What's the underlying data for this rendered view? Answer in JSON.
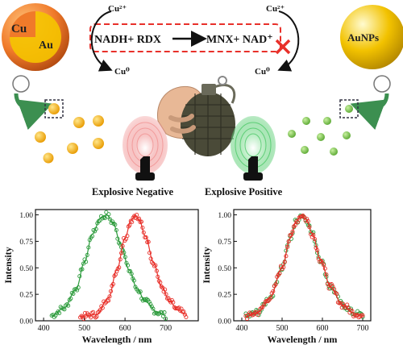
{
  "scheme": {
    "cu_label": "Cu",
    "au_label": "Au",
    "aunps_label": "AuNPs",
    "cu2_left": "Cu²⁺",
    "cu2_right": "Cu²⁺",
    "cu0_left": "Cu⁰",
    "cu0_right": "Cu⁰",
    "reaction_left": "NADH+ RDX",
    "reaction_right": "MNX+ NAD⁺",
    "negative_label": "Explosive Negative",
    "positive_label": "Explosive Positive",
    "colors": {
      "cu_shell": "#f07a2a",
      "au_core": "#f5c400",
      "aunps": "#f2c200",
      "dashed_box": "#e8302a",
      "block_x": "#e8302a",
      "dot_yellow": "#f2a900",
      "dot_green": "#7cc44a",
      "grenade": "#4a4a38",
      "arrow_green": "#3c8f50"
    },
    "icons": [
      "grenade-in-hand-icon",
      "red-fingerprint-icon",
      "green-fingerprint-icon",
      "block-cross-icon"
    ]
  },
  "chart_data": [
    {
      "type": "scatter",
      "xlabel": "Wavelength / nm",
      "ylabel": "Intensity",
      "xlim": [
        380,
        780
      ],
      "ylim": [
        0,
        1.05
      ],
      "xticks": [
        "400",
        "500",
        "600",
        "700"
      ],
      "yticks": [
        "0.00",
        "0.25",
        "0.50",
        "0.75",
        "1.00"
      ],
      "grid": false,
      "series": [
        {
          "color": "#2a9a3a",
          "x": [
            420,
            450,
            480,
            500,
            520,
            540,
            555,
            570,
            590,
            610,
            630,
            650,
            680,
            700
          ],
          "y": [
            0.05,
            0.12,
            0.3,
            0.55,
            0.82,
            0.97,
            1.0,
            0.93,
            0.72,
            0.48,
            0.3,
            0.18,
            0.08,
            0.05
          ]
        },
        {
          "color": "#e8302a",
          "x": [
            490,
            530,
            560,
            580,
            600,
            615,
            625,
            635,
            650,
            670,
            690,
            710,
            730,
            750
          ],
          "y": [
            0.04,
            0.06,
            0.22,
            0.48,
            0.78,
            0.95,
            1.0,
            0.95,
            0.8,
            0.55,
            0.32,
            0.18,
            0.1,
            0.06
          ]
        }
      ]
    },
    {
      "type": "scatter",
      "xlabel": "Wavelength / nm",
      "ylabel": "Intensity",
      "xlim": [
        380,
        720
      ],
      "ylim": [
        0,
        1.05
      ],
      "xticks": [
        "400",
        "500",
        "600",
        "700"
      ],
      "yticks": [
        "0.00",
        "0.25",
        "0.50",
        "0.75",
        "1.00"
      ],
      "grid": false,
      "series": [
        {
          "color": "#2a9a3a",
          "x": [
            410,
            440,
            470,
            500,
            520,
            535,
            548,
            560,
            575,
            595,
            620,
            650,
            680,
            700
          ],
          "y": [
            0.04,
            0.08,
            0.22,
            0.5,
            0.78,
            0.94,
            1.0,
            0.96,
            0.82,
            0.58,
            0.32,
            0.15,
            0.07,
            0.05
          ]
        },
        {
          "color": "#e8302a",
          "x": [
            410,
            440,
            470,
            500,
            520,
            535,
            548,
            560,
            575,
            595,
            620,
            650,
            680,
            700
          ],
          "y": [
            0.04,
            0.08,
            0.22,
            0.5,
            0.78,
            0.94,
            1.0,
            0.96,
            0.82,
            0.58,
            0.32,
            0.15,
            0.07,
            0.05
          ]
        }
      ]
    }
  ]
}
